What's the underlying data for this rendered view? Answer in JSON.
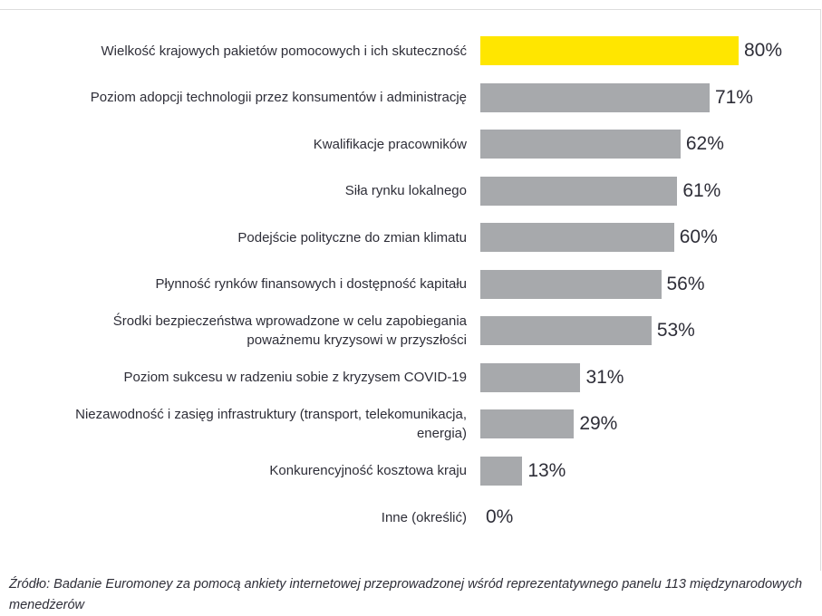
{
  "chart_data": {
    "type": "bar",
    "orientation": "horizontal",
    "categories": [
      "Wielkość krajowych pakietów pomocowych i ich skuteczność",
      "Poziom adopcji technologii przez konsumentów i administrację",
      "Kwalifikacje pracowników",
      "Siła rynku lokalnego",
      "Podejście polityczne do zmian klimatu",
      "Płynność rynków finansowych i dostępność kapitału",
      "Środki bezpieczeństwa wprowadzone w celu zapobiegania poważnemu kryzysowi w przyszłości",
      "Poziom sukcesu w radzeniu sobie z kryzysem COVID-19",
      "Niezawodność i zasięg infrastruktury (transport, telekomunikacja, energia)",
      "Konkurencyjność kosztowa kraju",
      "Inne (określić)"
    ],
    "values": [
      80,
      71,
      62,
      61,
      60,
      56,
      53,
      31,
      29,
      13,
      0
    ],
    "value_labels": [
      "80%",
      "71%",
      "62%",
      "61%",
      "60%",
      "56%",
      "53%",
      "31%",
      "29%",
      "13%",
      "0%"
    ],
    "colors": [
      "#ffe600",
      "#a7a9ac",
      "#a7a9ac",
      "#a7a9ac",
      "#a7a9ac",
      "#a7a9ac",
      "#a7a9ac",
      "#a7a9ac",
      "#a7a9ac",
      "#a7a9ac",
      "#a7a9ac"
    ],
    "xlim": [
      0,
      80
    ],
    "source": "Źródło: Badanie Euromoney za pomocą ankiety internetowej przeprowadzonej wśród reprezentatywnego panelu 113 międzynarodowych menedżerów"
  }
}
